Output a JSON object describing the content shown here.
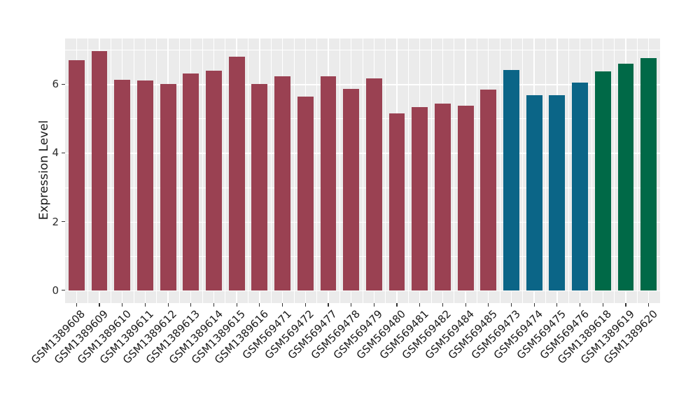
{
  "colors": {
    "figure_background": "#FFFFFF",
    "panel_background": "#EBEBEB",
    "gridline": "#FFFFFF",
    "axis_text": "#2B2B2B",
    "tick_mark": "#333333"
  },
  "chart_data": {
    "type": "bar",
    "title": "",
    "xlabel": "",
    "ylabel": "Expression Level",
    "yticks": [
      0,
      2,
      4,
      6
    ],
    "minor_yticks": [
      1,
      3,
      5,
      7
    ],
    "ylim": [
      -0.37,
      7.33
    ],
    "grid": "major and minor white gridlines on gray panel",
    "legend_position": "none",
    "bar_width_fraction": 0.7,
    "categories": [
      "GSM1389608",
      "GSM1389609",
      "GSM1389610",
      "GSM1389611",
      "GSM1389612",
      "GSM1389613",
      "GSM1389614",
      "GSM1389615",
      "GSM1389616",
      "GSM569471",
      "GSM569472",
      "GSM569477",
      "GSM569478",
      "GSM569479",
      "GSM569480",
      "GSM569481",
      "GSM569482",
      "GSM569484",
      "GSM569485",
      "GSM569473",
      "GSM569474",
      "GSM569475",
      "GSM569476",
      "GSM1389618",
      "GSM1389619",
      "GSM1389620"
    ],
    "values": [
      6.69,
      6.96,
      6.12,
      6.1,
      6.0,
      6.32,
      6.4,
      6.81,
      6.01,
      6.24,
      5.63,
      6.22,
      5.87,
      6.16,
      5.15,
      5.33,
      5.43,
      5.38,
      5.84,
      6.42,
      5.69,
      5.68,
      6.04,
      6.37,
      6.59,
      6.75
    ],
    "group_index": [
      0,
      0,
      0,
      0,
      0,
      0,
      0,
      0,
      0,
      0,
      0,
      0,
      0,
      0,
      0,
      0,
      0,
      0,
      0,
      1,
      1,
      1,
      1,
      2,
      2,
      2
    ],
    "group_colors": [
      "#9A4152",
      "#0B6587",
      "#006947"
    ]
  }
}
